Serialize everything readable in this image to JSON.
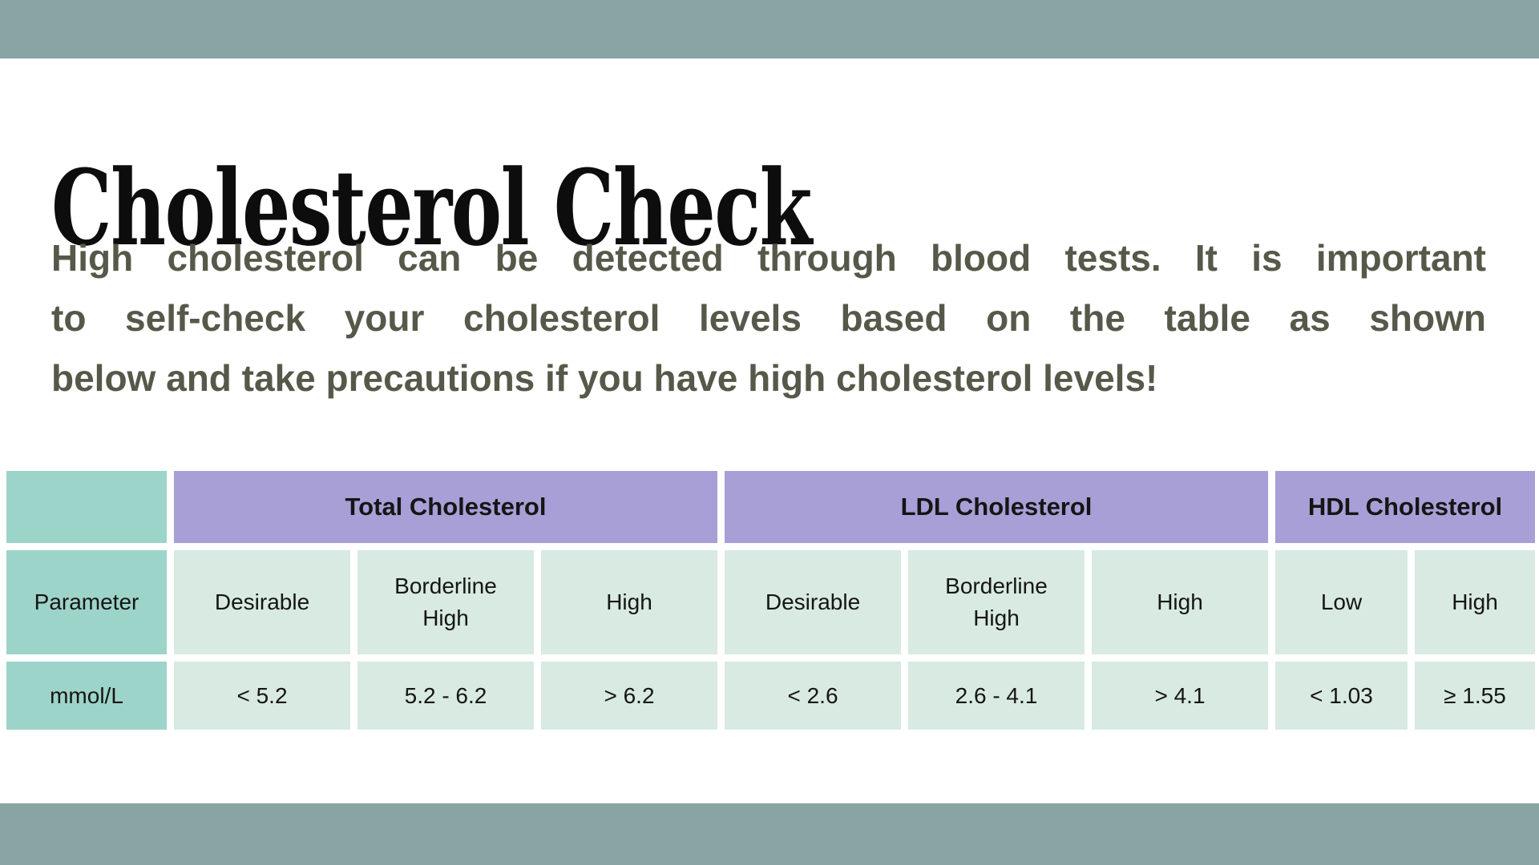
{
  "page": {
    "title": "Cholesterol Check"
  },
  "intro": {
    "lines": [
      "High cholesterol can be detected through blood tests. It is important",
      "to self-check your cholesterol levels based on the table as shown",
      "below and take precautions if you have high cholesterol levels!"
    ]
  },
  "table": {
    "groups": [
      {
        "label": "Total Cholesterol"
      },
      {
        "label": "LDL Cholesterol"
      },
      {
        "label": "HDL Cholesterol"
      }
    ],
    "row_header_label": "Parameter",
    "unit_label": "mmol/L",
    "columns": [
      "Desirable",
      "Borderline High",
      "High",
      "Desirable",
      "Borderline High",
      "High",
      "Low",
      "High"
    ],
    "values": [
      "< 5.2",
      "5.2 - 6.2",
      "> 6.2",
      "< 2.6",
      "2.6 - 4.1",
      "> 4.1",
      "< 1.03",
      "≥ 1.55"
    ]
  },
  "colors": {
    "band": "#88a5a3",
    "purple": "#a79fd6",
    "teal": "#9dd4c9",
    "mint": "#d8eae1",
    "ink": "#565949"
  }
}
